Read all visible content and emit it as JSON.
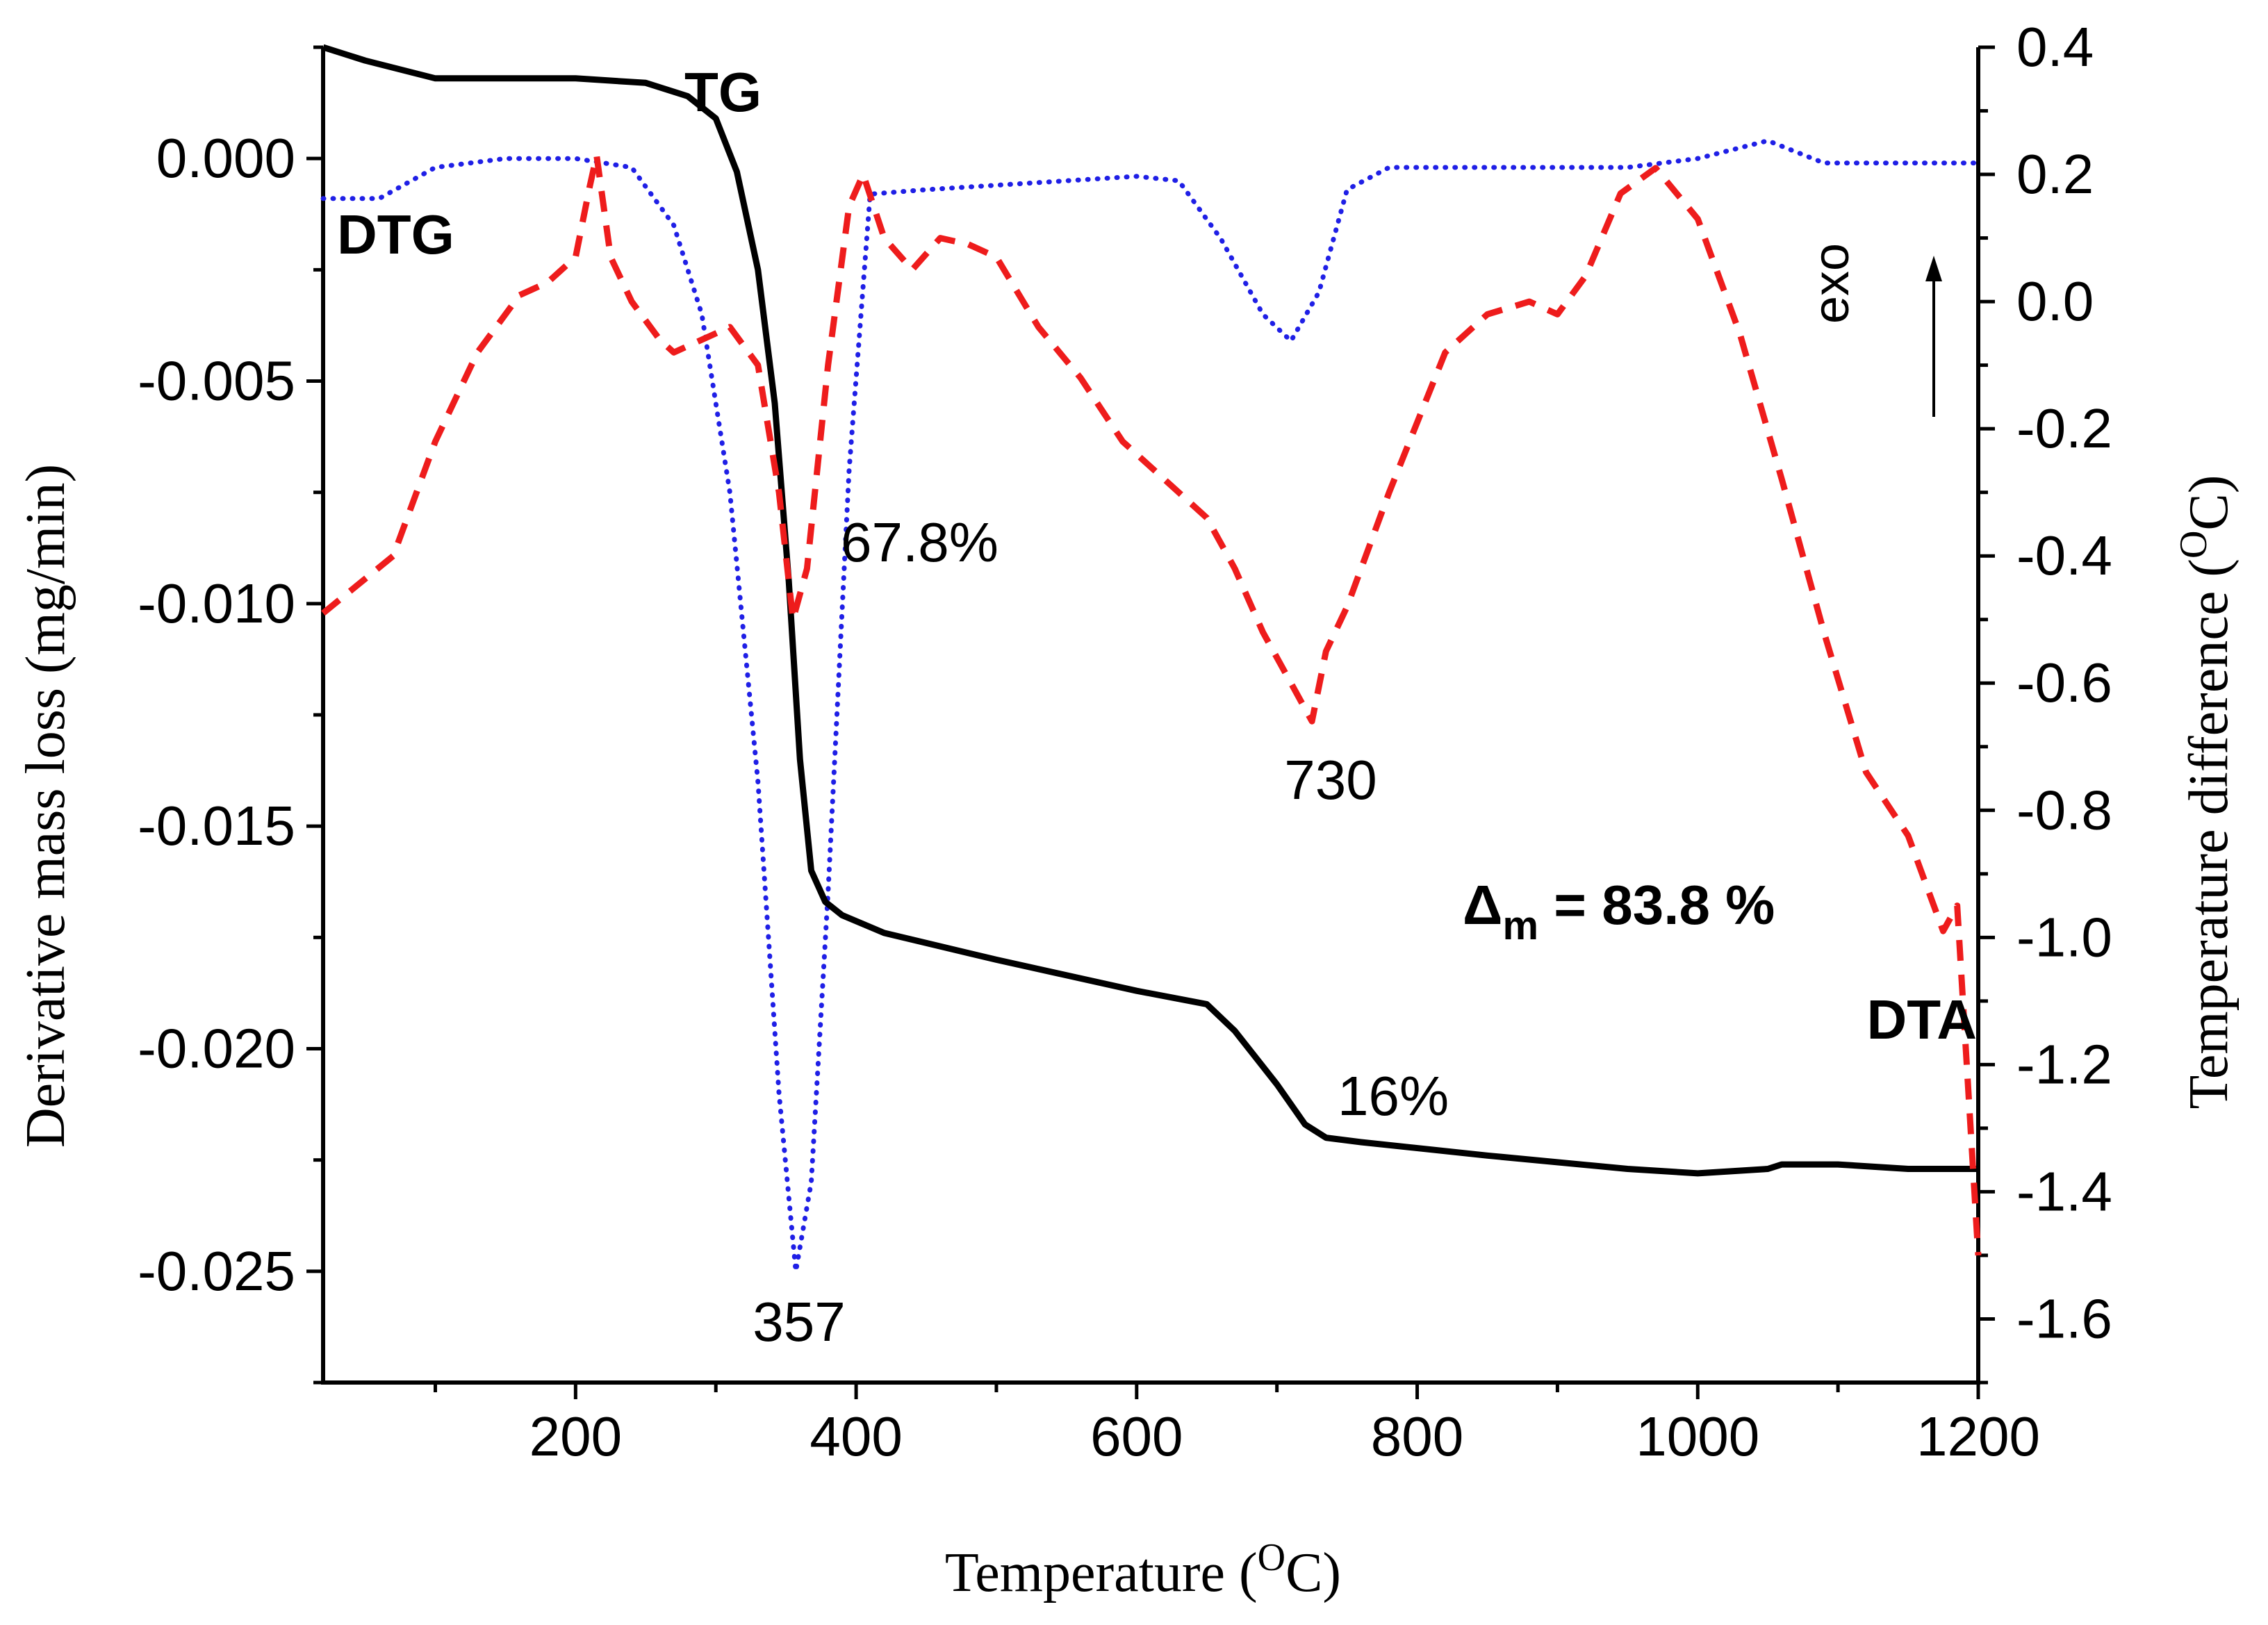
{
  "chart_data": {
    "type": "line",
    "title": "",
    "xlabel": "Temperature (",
    "xlabel_sup": "O",
    "xlabel_end": "C)",
    "ylabel_left": "Derivative mass loss (mg/min)",
    "ylabel_right": "Temperature difference (",
    "ylabel_right_sup": "O",
    "ylabel_right_end": "C)",
    "xlim": [
      20,
      1200
    ],
    "ylim_left": [
      -0.0275,
      0.0025
    ],
    "ylim_right": [
      -1.7,
      0.4
    ],
    "x_ticks": [
      200,
      400,
      600,
      800,
      1000,
      1200
    ],
    "y_left_ticks": [
      0.0,
      -0.005,
      -0.01,
      -0.015,
      -0.02,
      -0.025
    ],
    "y_left_tick_labels": [
      "0.000",
      "-0.005",
      "-0.010",
      "-0.015",
      "-0.020",
      "-0.025"
    ],
    "y_right_ticks": [
      0.4,
      0.2,
      0.0,
      -0.2,
      -0.4,
      -0.6,
      -0.8,
      -1.0,
      -1.2,
      -1.4,
      -1.6
    ],
    "y_right_tick_labels": [
      "0.4",
      "0.2",
      "0.0",
      "-0.2",
      "-0.4",
      "-0.6",
      "-0.8",
      "-1.0",
      "-1.2",
      "-1.4",
      "-1.6"
    ],
    "series": [
      {
        "name": "DTG",
        "axis": "left",
        "style": "dotted",
        "color": "#1f1fe6",
        "x": [
          20,
          60,
          100,
          150,
          200,
          240,
          270,
          290,
          310,
          330,
          345,
          357,
          368,
          380,
          395,
          410,
          450,
          500,
          550,
          600,
          630,
          660,
          690,
          710,
          730,
          750,
          780,
          850,
          950,
          1000,
          1050,
          1090,
          1150,
          1200
        ],
        "y": [
          -0.0009,
          -0.0009,
          -0.0002,
          0.0,
          0.0,
          -0.0002,
          -0.0015,
          -0.0035,
          -0.0075,
          -0.014,
          -0.021,
          -0.025,
          -0.023,
          -0.0165,
          -0.007,
          -0.0008,
          -0.0007,
          -0.0006,
          -0.0005,
          -0.0004,
          -0.0005,
          -0.0018,
          -0.0035,
          -0.0041,
          -0.003,
          -0.0007,
          -0.0002,
          -0.0002,
          -0.0002,
          0.0,
          0.0004,
          -0.0001,
          -0.0001,
          -0.0001
        ]
      },
      {
        "name": "TG",
        "axis": "left",
        "style": "solid",
        "color": "#000000",
        "x": [
          20,
          50,
          100,
          150,
          200,
          250,
          280,
          300,
          315,
          330,
          342,
          352,
          360,
          368,
          378,
          390,
          420,
          500,
          600,
          650,
          670,
          700,
          720,
          735,
          760,
          850,
          950,
          1000,
          1050,
          1060,
          1100,
          1150,
          1200
        ],
        "y": [
          0.0025,
          0.0022,
          0.0018,
          0.0018,
          0.0018,
          0.0017,
          0.0014,
          0.0009,
          -0.0003,
          -0.0025,
          -0.0055,
          -0.0095,
          -0.0135,
          -0.016,
          -0.0167,
          -0.017,
          -0.0174,
          -0.018,
          -0.0187,
          -0.019,
          -0.0196,
          -0.0208,
          -0.0217,
          -0.022,
          -0.0221,
          -0.0224,
          -0.0227,
          -0.0228,
          -0.0227,
          -0.0226,
          -0.0226,
          -0.0227,
          -0.0227
        ]
      },
      {
        "name": "DTA",
        "axis": "right",
        "style": "dashed",
        "color": "#ee1c1c",
        "x": [
          20,
          70,
          100,
          130,
          160,
          180,
          200,
          210,
          215,
          225,
          240,
          260,
          270,
          290,
          310,
          330,
          345,
          355,
          365,
          380,
          395,
          405,
          420,
          440,
          460,
          480,
          500,
          530,
          560,
          590,
          620,
          650,
          670,
          690,
          710,
          725,
          735,
          750,
          780,
          820,
          850,
          880,
          900,
          920,
          945,
          970,
          1000,
          1030,
          1060,
          1090,
          1120,
          1150,
          1175,
          1185,
          1200
        ],
        "y": [
          -0.49,
          -0.4,
          -0.22,
          -0.08,
          0.01,
          0.03,
          0.07,
          0.18,
          0.23,
          0.07,
          0.0,
          -0.06,
          -0.08,
          -0.06,
          -0.04,
          -0.1,
          -0.3,
          -0.5,
          -0.42,
          -0.1,
          0.15,
          0.2,
          0.1,
          0.05,
          0.1,
          0.09,
          0.07,
          -0.04,
          -0.12,
          -0.22,
          -0.28,
          -0.34,
          -0.42,
          -0.52,
          -0.6,
          -0.66,
          -0.55,
          -0.48,
          -0.3,
          -0.08,
          -0.02,
          0.0,
          -0.02,
          0.04,
          0.17,
          0.21,
          0.13,
          -0.05,
          -0.28,
          -0.52,
          -0.74,
          -0.84,
          -0.99,
          -0.95,
          -1.5
        ]
      }
    ],
    "annotations": {
      "tg": "TG",
      "dtg": "DTG",
      "dta": "DTA",
      "peak1": "357",
      "peak2": "730",
      "step1": "67.8%",
      "step2": "16%",
      "exo": "exo",
      "delta_symbol": "Δ",
      "delta_sub": "m",
      "delta_text": " = 83.8 %"
    }
  }
}
